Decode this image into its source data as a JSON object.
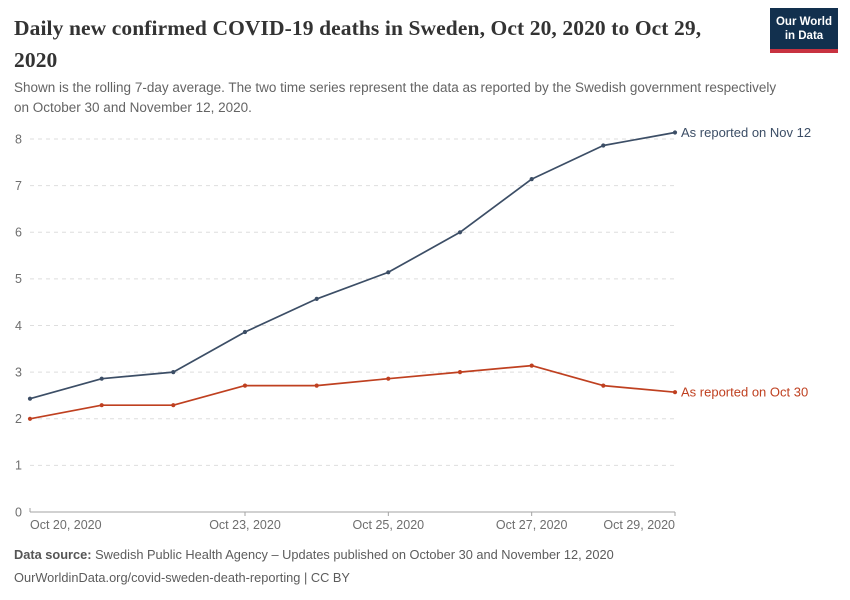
{
  "logo": {
    "line1": "Our World",
    "line2": "in Data",
    "bg_color": "#12304E",
    "bar_color": "#C83240"
  },
  "header": {
    "title": "Daily new confirmed COVID-19 deaths in Sweden, Oct 20, 2020 to Oct 29, 2020",
    "subtitle": "Shown is the rolling 7-day average. The two time series represent the data as reported by the Swedish government respectively on October 30 and November 12, 2020."
  },
  "chart_data": {
    "type": "line",
    "title": "Daily new confirmed COVID-19 deaths in Sweden, Oct 20, 2020 to Oct 29, 2020",
    "x": [
      "Oct 20, 2020",
      "Oct 21, 2020",
      "Oct 22, 2020",
      "Oct 23, 2020",
      "Oct 24, 2020",
      "Oct 25, 2020",
      "Oct 26, 2020",
      "Oct 27, 2020",
      "Oct 28, 2020",
      "Oct 29, 2020"
    ],
    "series": [
      {
        "name": "As reported on Nov 12",
        "color": "#3C4E66",
        "values": [
          2.43,
          2.86,
          3.0,
          3.86,
          4.57,
          5.14,
          6.0,
          7.14,
          7.86,
          8.14
        ]
      },
      {
        "name": "As reported on Oct 30",
        "color": "#BF4020",
        "values": [
          2.0,
          2.29,
          2.29,
          2.71,
          2.71,
          2.86,
          3.0,
          3.14,
          2.71,
          2.57
        ]
      }
    ],
    "ylim": [
      0,
      8.4
    ],
    "yticks": [
      0,
      1,
      2,
      3,
      4,
      5,
      6,
      7,
      8
    ],
    "xticks": [
      {
        "index": 0,
        "label": "Oct 20, 2020"
      },
      {
        "index": 3,
        "label": "Oct 23, 2020"
      },
      {
        "index": 5,
        "label": "Oct 25, 2020"
      },
      {
        "index": 7,
        "label": "Oct 27, 2020"
      },
      {
        "index": 9,
        "label": "Oct 29, 2020"
      }
    ],
    "grid": "horizontal-dashed",
    "legend_position": "labels-at-line-end",
    "colors": {
      "grid": "#dedede",
      "axis": "#a3a3a3",
      "tick_text": "#6e6e6e"
    }
  },
  "footer": {
    "source_label": "Data source:",
    "source_text": " Swedish Public Health Agency – Updates published on October 30 and November 12, 2020",
    "link_line": "OurWorldinData.org/covid-sweden-death-reporting | CC BY"
  }
}
